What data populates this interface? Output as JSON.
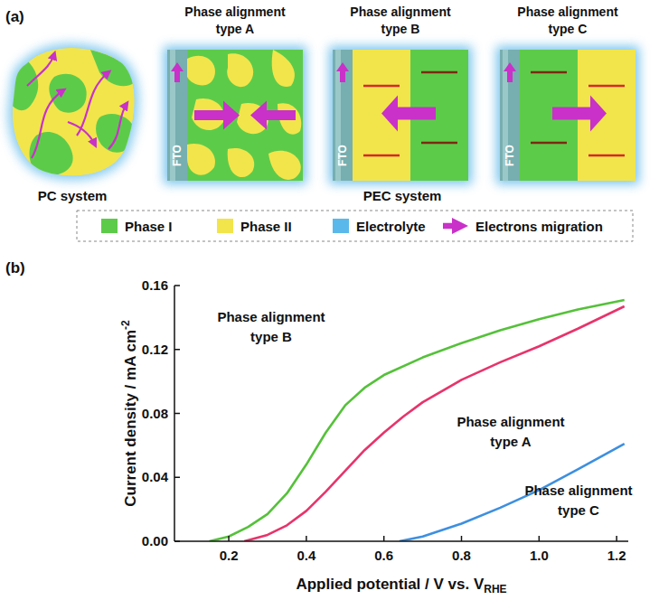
{
  "panel_labels": [
    "(a)",
    "(b)"
  ],
  "diagram": {
    "pc_system": "PC system",
    "pec_system": "PEC system",
    "substrate": "FTO",
    "alignments": [
      {
        "title": [
          "Phase alignment",
          "type A"
        ]
      },
      {
        "title": [
          "Phase alignment",
          "type B"
        ]
      },
      {
        "title": [
          "Phase alignment",
          "type C"
        ]
      }
    ],
    "legend": [
      {
        "label": "Phase I",
        "color": "#5dcb4a"
      },
      {
        "label": "Phase II",
        "color": "#f2e54b"
      },
      {
        "label": "Electrolyte",
        "color": "#5bb8ea"
      },
      {
        "label": "Electrons migration",
        "color": "#c931c9"
      }
    ]
  },
  "chart_data": {
    "type": "line",
    "x_label": {
      "text": "Applied potential / V vs. V",
      "subscript": "RHE"
    },
    "y_label": {
      "text": "Current density / mA cm",
      "superscript": "-2"
    },
    "xlim": [
      0.06,
      1.23
    ],
    "ylim": [
      0,
      0.16
    ],
    "xticks": [
      0.2,
      0.4,
      0.6,
      0.8,
      {
        "value": 1,
        "label": "1.0"
      },
      1.2
    ],
    "yticks": [
      {
        "value": 0,
        "label": "0.00"
      },
      {
        "value": 0.04,
        "label": "0.04"
      },
      {
        "value": 0.08,
        "label": "0.08"
      },
      {
        "value": 0.12,
        "label": "0.12"
      },
      {
        "value": 0.16,
        "label": "0.16"
      }
    ],
    "grid": false,
    "series": [
      {
        "name": "Phase alignment type A",
        "color": "#e8336b",
        "x": [
          0.24,
          0.3,
          0.35,
          0.4,
          0.45,
          0.5,
          0.55,
          0.6,
          0.65,
          0.7,
          0.8,
          0.9,
          1.0,
          1.1,
          1.22
        ],
        "values": [
          0,
          0.004,
          0.01,
          0.019,
          0.031,
          0.044,
          0.057,
          0.068,
          0.078,
          0.087,
          0.101,
          0.112,
          0.122,
          0.133,
          0.147
        ]
      },
      {
        "name": "Phase alignment type B",
        "color": "#55c13a",
        "x": [
          0.15,
          0.2,
          0.25,
          0.3,
          0.35,
          0.4,
          0.45,
          0.5,
          0.55,
          0.6,
          0.7,
          0.8,
          0.9,
          1.0,
          1.1,
          1.22
        ],
        "values": [
          0,
          0.003,
          0.009,
          0.017,
          0.03,
          0.048,
          0.068,
          0.085,
          0.096,
          0.104,
          0.115,
          0.124,
          0.132,
          0.139,
          0.145,
          0.151
        ]
      },
      {
        "name": "Phase alignment type C",
        "color": "#3d8fe0",
        "x": [
          0.64,
          0.7,
          0.8,
          0.9,
          1.0,
          1.1,
          1.22
        ],
        "values": [
          0,
          0.003,
          0.011,
          0.021,
          0.032,
          0.045,
          0.061
        ]
      }
    ]
  }
}
